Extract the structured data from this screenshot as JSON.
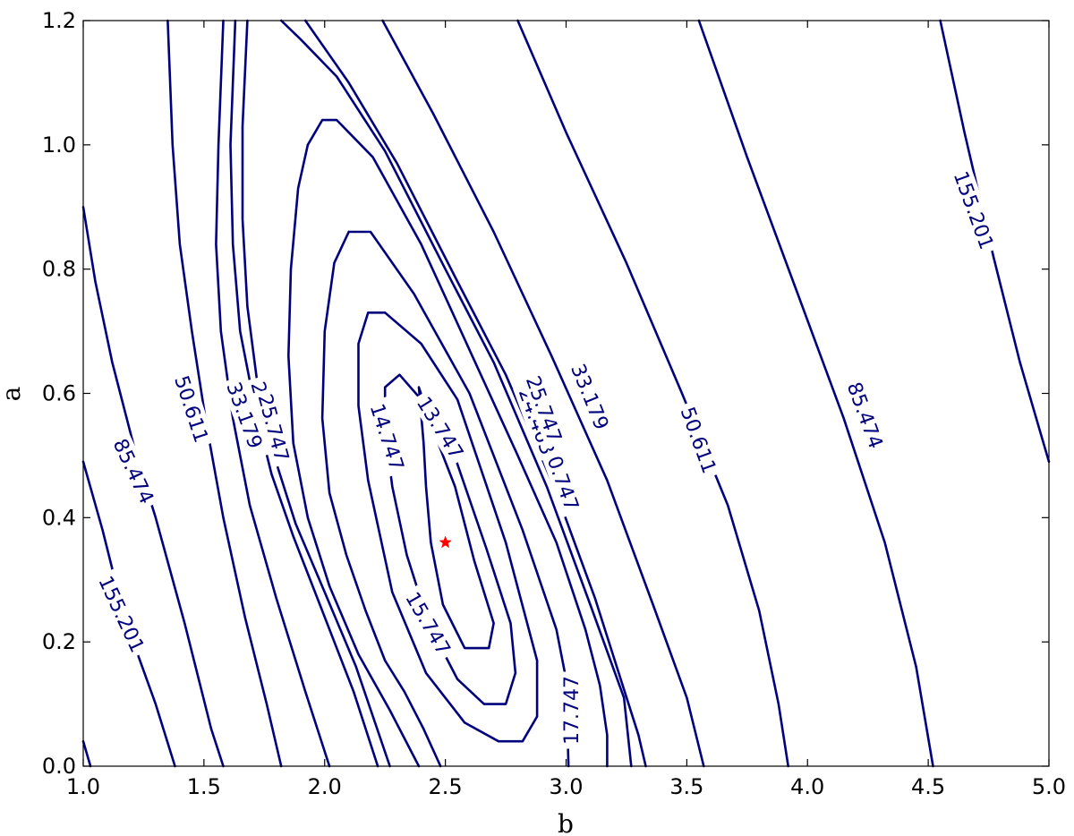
{
  "chart_data": {
    "type": "contour",
    "title": "",
    "xlabel": "b",
    "ylabel": "a",
    "xlim": [
      1.0,
      5.0
    ],
    "ylim": [
      0.0,
      1.2
    ],
    "xticks": [
      "1.0",
      "1.5",
      "2.0",
      "2.5",
      "3.0",
      "3.5",
      "4.0",
      "4.5",
      "5.0"
    ],
    "yticks": [
      "0.0",
      "0.2",
      "0.4",
      "0.6",
      "0.8",
      "1.0",
      "1.2"
    ],
    "grid": false,
    "line_color": "#00007f",
    "marker": {
      "b": 2.5,
      "a": 0.36,
      "symbol": "star",
      "color": "#ff0000"
    },
    "levels": [
      {
        "level": "13.747",
        "points": [
          [
            2.39,
            0.61
          ],
          [
            2.45,
            0.54
          ],
          [
            2.54,
            0.45
          ],
          [
            2.62,
            0.33
          ],
          [
            2.7,
            0.23
          ],
          [
            2.68,
            0.19
          ],
          [
            2.58,
            0.19
          ],
          [
            2.49,
            0.26
          ],
          [
            2.44,
            0.36
          ],
          [
            2.42,
            0.45
          ],
          [
            2.41,
            0.52
          ]
        ],
        "closed": true,
        "labels": [
          {
            "b": 2.48,
            "a": 0.545,
            "rot": 58
          }
        ]
      },
      {
        "level": "14.747",
        "points": [
          [
            2.25,
            0.61
          ],
          [
            2.31,
            0.63
          ],
          [
            2.4,
            0.59
          ],
          [
            2.52,
            0.52
          ],
          [
            2.67,
            0.35
          ],
          [
            2.77,
            0.23
          ],
          [
            2.79,
            0.15
          ],
          [
            2.75,
            0.1
          ],
          [
            2.66,
            0.1
          ],
          [
            2.55,
            0.14
          ],
          [
            2.43,
            0.23
          ],
          [
            2.34,
            0.34
          ],
          [
            2.28,
            0.45
          ],
          [
            2.25,
            0.54
          ]
        ],
        "closed": true,
        "labels": [
          {
            "b": 2.26,
            "a": 0.53,
            "rot": 72
          }
        ]
      },
      {
        "level": "15.747",
        "points": [
          [
            2.18,
            0.73
          ],
          [
            2.25,
            0.73
          ],
          [
            2.4,
            0.68
          ],
          [
            2.55,
            0.59
          ],
          [
            2.75,
            0.36
          ],
          [
            2.88,
            0.17
          ],
          [
            2.88,
            0.08
          ],
          [
            2.82,
            0.04
          ],
          [
            2.72,
            0.04
          ],
          [
            2.58,
            0.07
          ],
          [
            2.42,
            0.15
          ],
          [
            2.28,
            0.28
          ],
          [
            2.18,
            0.46
          ],
          [
            2.14,
            0.58
          ],
          [
            2.14,
            0.68
          ]
        ],
        "closed": true,
        "labels": [
          {
            "b": 2.43,
            "a": 0.23,
            "rot": 60
          }
        ]
      },
      {
        "level": "17.747",
        "points": [
          [
            2.1,
            0.86
          ],
          [
            2.19,
            0.86
          ],
          [
            2.37,
            0.76
          ],
          [
            2.6,
            0.6
          ],
          [
            2.82,
            0.38
          ],
          [
            2.96,
            0.22
          ],
          [
            3.0,
            0.14
          ],
          [
            3.01,
            0.0
          ]
        ],
        "closed": false,
        "labels": [
          {
            "b": 3.02,
            "a": 0.09,
            "rot": -90
          }
        ]
      },
      {
        "level": "17.747",
        "points": [
          [
            2.1,
            0.86
          ],
          [
            2.04,
            0.81
          ],
          [
            2.0,
            0.7
          ],
          [
            1.99,
            0.56
          ],
          [
            2.02,
            0.44
          ],
          [
            2.09,
            0.34
          ],
          [
            2.17,
            0.25
          ],
          [
            2.25,
            0.17
          ],
          [
            2.33,
            0.12
          ],
          [
            2.41,
            0.06
          ],
          [
            2.48,
            0.0
          ]
        ],
        "closed": false,
        "labels": []
      },
      {
        "level": "20.747",
        "points": [
          [
            1.93,
            1.0
          ],
          [
            1.99,
            1.04
          ],
          [
            2.05,
            1.04
          ],
          [
            2.2,
            0.98
          ],
          [
            2.4,
            0.84
          ],
          [
            2.6,
            0.67
          ],
          [
            2.8,
            0.5
          ],
          [
            2.96,
            0.36
          ],
          [
            3.08,
            0.22
          ],
          [
            3.14,
            0.13
          ],
          [
            3.17,
            0.05
          ],
          [
            3.17,
            0.0
          ]
        ],
        "closed": false,
        "labels": [
          {
            "b": 2.98,
            "a": 0.465,
            "rot": 70
          }
        ]
      },
      {
        "level": "20.747",
        "points": [
          [
            1.93,
            1.0
          ],
          [
            1.89,
            0.93
          ],
          [
            1.86,
            0.8
          ],
          [
            1.85,
            0.66
          ],
          [
            1.87,
            0.52
          ],
          [
            1.93,
            0.4
          ],
          [
            2.02,
            0.29
          ],
          [
            2.14,
            0.18
          ],
          [
            2.27,
            0.09
          ],
          [
            2.39,
            0.0
          ]
        ],
        "closed": false,
        "labels": []
      },
      {
        "level": "24.463",
        "points": [
          [
            1.82,
            1.2
          ],
          [
            1.9,
            1.17
          ],
          [
            2.05,
            1.11
          ],
          [
            2.25,
            0.99
          ],
          [
            2.5,
            0.8
          ],
          [
            2.7,
            0.65
          ],
          [
            2.92,
            0.45
          ],
          [
            3.1,
            0.26
          ],
          [
            3.24,
            0.11
          ],
          [
            3.27,
            0.0
          ]
        ],
        "closed": false,
        "labels": [
          {
            "b": 2.88,
            "a": 0.555,
            "rot": 70
          }
        ]
      },
      {
        "level": "24.463",
        "points": [
          [
            1.68,
            1.2
          ],
          [
            1.66,
            1.03
          ],
          [
            1.66,
            0.88
          ],
          [
            1.68,
            0.74
          ],
          [
            1.72,
            0.62
          ],
          [
            1.79,
            0.5
          ],
          [
            1.88,
            0.39
          ],
          [
            2.0,
            0.28
          ],
          [
            2.13,
            0.16
          ],
          [
            2.27,
            0.0
          ]
        ],
        "closed": false,
        "labels": [
          {
            "b": 1.76,
            "a": 0.565,
            "rot": 75
          }
        ]
      },
      {
        "level": "25.747",
        "points": [
          [
            1.92,
            1.2
          ],
          [
            2.1,
            1.1
          ],
          [
            2.3,
            0.97
          ],
          [
            2.55,
            0.78
          ],
          [
            2.75,
            0.63
          ],
          [
            2.95,
            0.45
          ],
          [
            3.12,
            0.27
          ],
          [
            3.3,
            0.05
          ],
          [
            3.33,
            0.0
          ]
        ],
        "closed": false,
        "labels": [
          {
            "b": 2.91,
            "a": 0.575,
            "rot": 70
          }
        ]
      },
      {
        "level": "25.747",
        "points": [
          [
            1.63,
            1.2
          ],
          [
            1.61,
            1.0
          ],
          [
            1.62,
            0.84
          ],
          [
            1.65,
            0.7
          ],
          [
            1.71,
            0.58
          ],
          [
            1.78,
            0.47
          ],
          [
            1.87,
            0.37
          ],
          [
            1.98,
            0.26
          ],
          [
            2.12,
            0.12
          ],
          [
            2.22,
            0.0
          ]
        ],
        "closed": false,
        "labels": [
          {
            "b": 1.79,
            "a": 0.545,
            "rot": 75
          }
        ]
      },
      {
        "level": "33.179",
        "points": [
          [
            2.24,
            1.2
          ],
          [
            2.45,
            1.05
          ],
          [
            2.7,
            0.86
          ],
          [
            2.94,
            0.66
          ],
          [
            3.17,
            0.46
          ],
          [
            3.36,
            0.26
          ],
          [
            3.5,
            0.11
          ],
          [
            3.57,
            0.0
          ]
        ],
        "closed": false,
        "labels": [
          {
            "b": 3.1,
            "a": 0.595,
            "rot": 68
          }
        ]
      },
      {
        "level": "33.179",
        "points": [
          [
            1.58,
            1.2
          ],
          [
            1.56,
            1.0
          ],
          [
            1.55,
            0.84
          ],
          [
            1.57,
            0.7
          ],
          [
            1.62,
            0.56
          ],
          [
            1.69,
            0.42
          ],
          [
            1.8,
            0.27
          ],
          [
            1.92,
            0.12
          ],
          [
            2.02,
            0.0
          ]
        ],
        "closed": false,
        "labels": [
          {
            "b": 1.67,
            "a": 0.565,
            "rot": 70
          }
        ]
      },
      {
        "level": "50.611",
        "points": [
          [
            2.8,
            1.2
          ],
          [
            3.0,
            1.02
          ],
          [
            3.25,
            0.81
          ],
          [
            3.48,
            0.6
          ],
          [
            3.67,
            0.42
          ],
          [
            3.8,
            0.25
          ],
          [
            3.88,
            0.1
          ],
          [
            3.92,
            0.0
          ]
        ],
        "closed": false,
        "labels": [
          {
            "b": 3.55,
            "a": 0.525,
            "rot": 70
          }
        ]
      },
      {
        "level": "50.611",
        "points": [
          [
            1.35,
            1.2
          ],
          [
            1.37,
            1.0
          ],
          [
            1.4,
            0.84
          ],
          [
            1.45,
            0.7
          ],
          [
            1.51,
            0.55
          ],
          [
            1.58,
            0.4
          ],
          [
            1.67,
            0.24
          ],
          [
            1.76,
            0.1
          ],
          [
            1.82,
            0.0
          ]
        ],
        "closed": false,
        "labels": [
          {
            "b": 1.45,
            "a": 0.575,
            "rot": 72
          }
        ]
      },
      {
        "level": "85.474",
        "points": [
          [
            3.55,
            1.2
          ],
          [
            3.75,
            0.98
          ],
          [
            3.95,
            0.77
          ],
          [
            4.15,
            0.56
          ],
          [
            4.32,
            0.36
          ],
          [
            4.45,
            0.16
          ],
          [
            4.52,
            0.0
          ]
        ],
        "closed": false,
        "labels": [
          {
            "b": 4.24,
            "a": 0.565,
            "rot": 70
          }
        ]
      },
      {
        "level": "85.474",
        "points": [
          [
            1.0,
            0.9
          ],
          [
            1.05,
            0.78
          ],
          [
            1.12,
            0.65
          ],
          [
            1.22,
            0.5
          ],
          [
            1.3,
            0.4
          ],
          [
            1.42,
            0.23
          ],
          [
            1.53,
            0.06
          ],
          [
            1.58,
            0.0
          ]
        ],
        "closed": false,
        "labels": [
          {
            "b": 1.21,
            "a": 0.475,
            "rot": 65
          }
        ]
      },
      {
        "level": "155.201",
        "points": [
          [
            4.55,
            1.2
          ],
          [
            4.65,
            1.02
          ],
          [
            4.77,
            0.82
          ],
          [
            4.88,
            0.65
          ],
          [
            5.0,
            0.49
          ]
        ],
        "closed": false,
        "labels": [
          {
            "b": 4.69,
            "a": 0.895,
            "rot": 70
          }
        ]
      },
      {
        "level": "155.201",
        "points": [
          [
            1.0,
            0.49
          ],
          [
            1.08,
            0.38
          ],
          [
            1.17,
            0.24
          ],
          [
            1.3,
            0.1
          ],
          [
            1.38,
            0.0
          ]
        ],
        "closed": false,
        "labels": [
          {
            "b": 1.16,
            "a": 0.245,
            "rot": 65
          }
        ]
      },
      {
        "level": "",
        "points": [
          [
            1.0,
            0.04
          ],
          [
            1.03,
            0.0
          ]
        ],
        "closed": false,
        "labels": []
      }
    ]
  }
}
